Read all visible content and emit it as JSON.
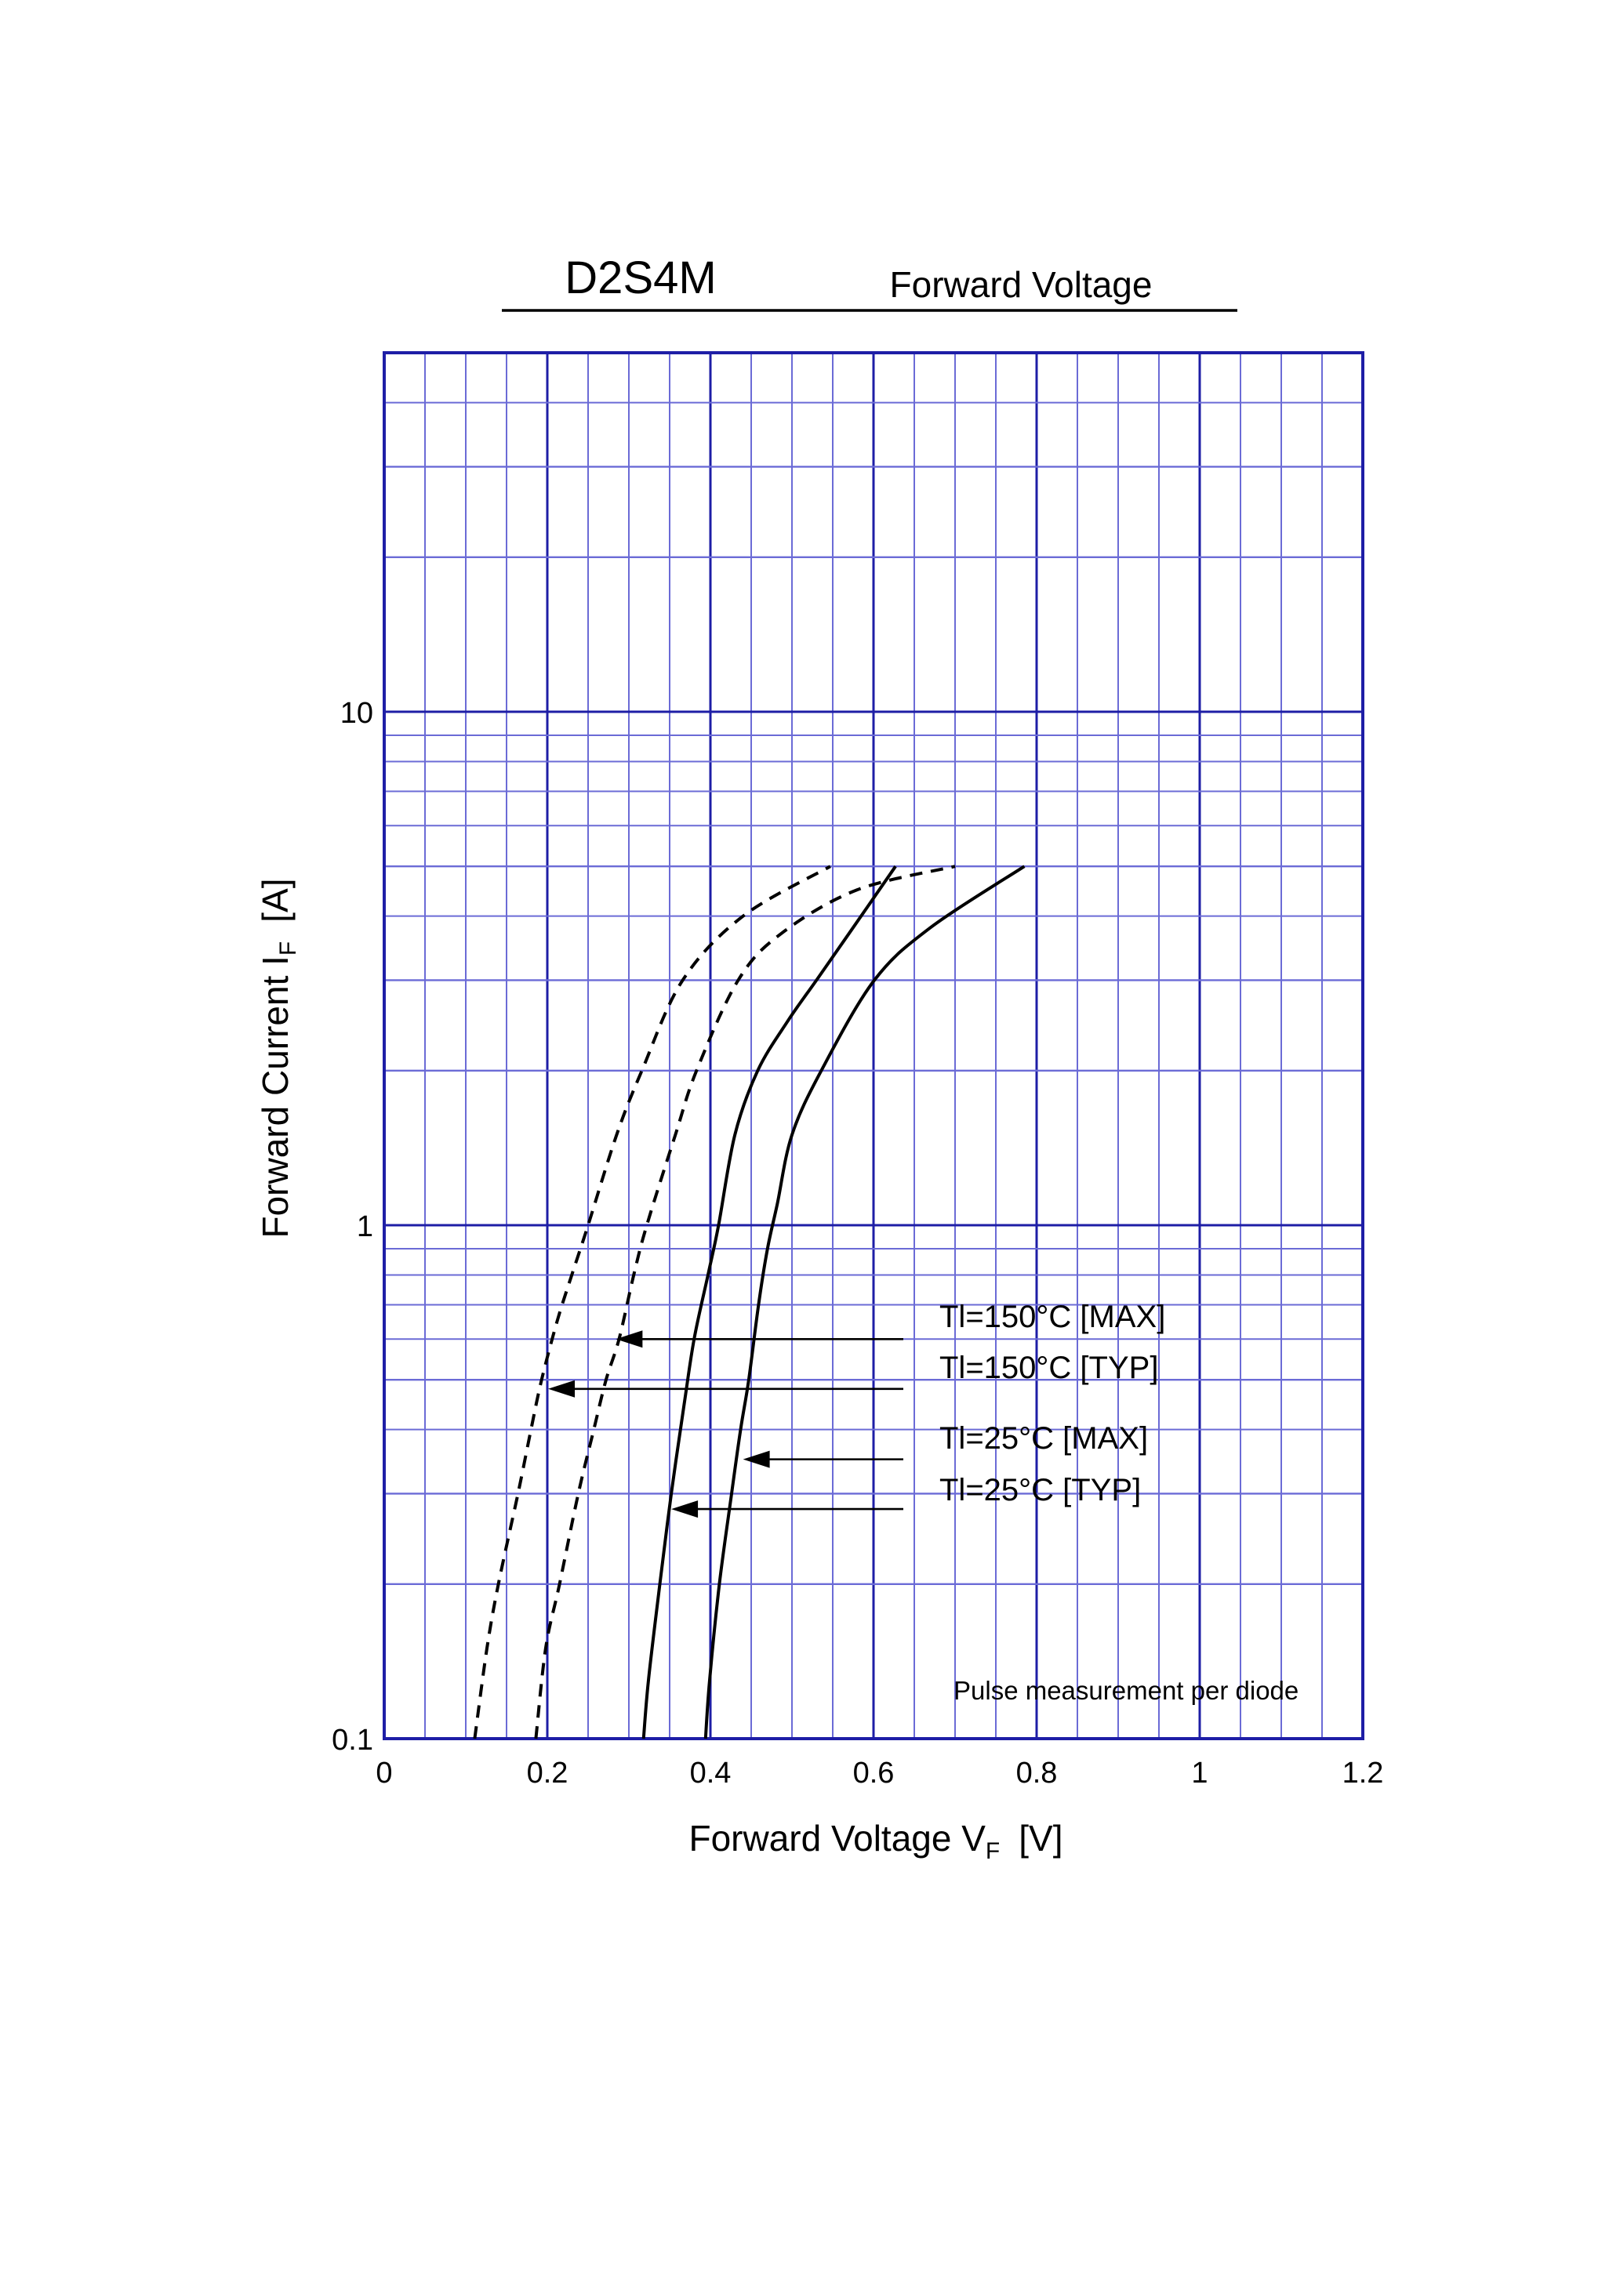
{
  "chart_data": {
    "type": "line",
    "title": "D2S4M",
    "subtitle": "Forward Voltage",
    "xlabel": {
      "main": "Forward Voltage  V",
      "sub": "F",
      "unit": "[V]"
    },
    "ylabel": {
      "main": "Forward Current  I",
      "sub": "F",
      "unit": "[A]"
    },
    "xlim": [
      0,
      1.2
    ],
    "ylim": [
      0.1,
      50
    ],
    "yscale": "log",
    "grid": true,
    "x_ticks": [
      {
        "value": 0,
        "label": "0"
      },
      {
        "value": 0.2,
        "label": "0.2"
      },
      {
        "value": 0.4,
        "label": "0.4"
      },
      {
        "value": 0.6,
        "label": "0.6"
      },
      {
        "value": 0.8,
        "label": "0.8"
      },
      {
        "value": 1.0,
        "label": "1"
      },
      {
        "value": 1.2,
        "label": "1.2"
      }
    ],
    "y_ticks": [
      {
        "value": 0.1,
        "label": "0.1"
      },
      {
        "value": 1,
        "label": "1"
      },
      {
        "value": 10,
        "label": "10"
      }
    ],
    "note": "Pulse measurement per diode",
    "series": [
      {
        "name": "Tl=150°C [MAX]",
        "style": "dashed",
        "points": [
          [
            0.186,
            0.1
          ],
          [
            0.198,
            0.15
          ],
          [
            0.215,
            0.2
          ],
          [
            0.238,
            0.3
          ],
          [
            0.257,
            0.4
          ],
          [
            0.272,
            0.5
          ],
          [
            0.288,
            0.6
          ],
          [
            0.306,
            0.8
          ],
          [
            0.322,
            1.0
          ],
          [
            0.357,
            1.5
          ],
          [
            0.383,
            2.0
          ],
          [
            0.434,
            3.0
          ],
          [
            0.487,
            3.7
          ],
          [
            0.58,
            4.5
          ],
          [
            0.7,
            5.0
          ]
        ]
      },
      {
        "name": "Tl=150°C [TYP]",
        "style": "dashed",
        "points": [
          [
            0.111,
            0.1
          ],
          [
            0.126,
            0.15
          ],
          [
            0.14,
            0.2
          ],
          [
            0.164,
            0.3
          ],
          [
            0.18,
            0.4
          ],
          [
            0.193,
            0.5
          ],
          [
            0.212,
            0.65
          ],
          [
            0.23,
            0.8
          ],
          [
            0.25,
            1.0
          ],
          [
            0.285,
            1.5
          ],
          [
            0.316,
            2.0
          ],
          [
            0.366,
            3.0
          ],
          [
            0.44,
            4.0
          ],
          [
            0.547,
            5.0
          ]
        ]
      },
      {
        "name": "Tl=25°C [MAX]",
        "style": "solid",
        "points": [
          [
            0.394,
            0.1
          ],
          [
            0.399,
            0.13
          ],
          [
            0.411,
            0.2
          ],
          [
            0.426,
            0.3
          ],
          [
            0.437,
            0.4
          ],
          [
            0.447,
            0.5
          ],
          [
            0.459,
            0.7
          ],
          [
            0.47,
            0.9
          ],
          [
            0.482,
            1.1
          ],
          [
            0.5,
            1.5
          ],
          [
            0.536,
            2.0
          ],
          [
            0.601,
            3.0
          ],
          [
            0.67,
            3.8
          ],
          [
            0.785,
            5.0
          ]
        ]
      },
      {
        "name": "Tl=25°C [TYP]",
        "style": "solid",
        "points": [
          [
            0.318,
            0.1
          ],
          [
            0.324,
            0.13
          ],
          [
            0.338,
            0.2
          ],
          [
            0.352,
            0.3
          ],
          [
            0.368,
            0.45
          ],
          [
            0.38,
            0.6
          ],
          [
            0.397,
            0.8
          ],
          [
            0.41,
            1.0
          ],
          [
            0.43,
            1.5
          ],
          [
            0.458,
            2.0
          ],
          [
            0.495,
            2.5
          ],
          [
            0.53,
            3.0
          ],
          [
            0.57,
            3.7
          ],
          [
            0.627,
            5.0
          ]
        ]
      }
    ],
    "annotations": [
      {
        "label": "Tl=150°C [MAX]",
        "arrow_tip": [
          0.284,
          0.6
        ]
      },
      {
        "label": "Tl=150°C [TYP]",
        "arrow_tip": [
          0.201,
          0.48
        ]
      },
      {
        "label": "Tl=25°C [MAX]",
        "arrow_tip": [
          0.44,
          0.35
        ]
      },
      {
        "label": "Tl=25°C [TYP]",
        "arrow_tip": [
          0.352,
          0.28
        ]
      }
    ]
  },
  "colors": {
    "grid_major": "#1e1ea6",
    "grid_minor": "#6b6bd6",
    "curves": "#000000",
    "text": "#000000"
  }
}
